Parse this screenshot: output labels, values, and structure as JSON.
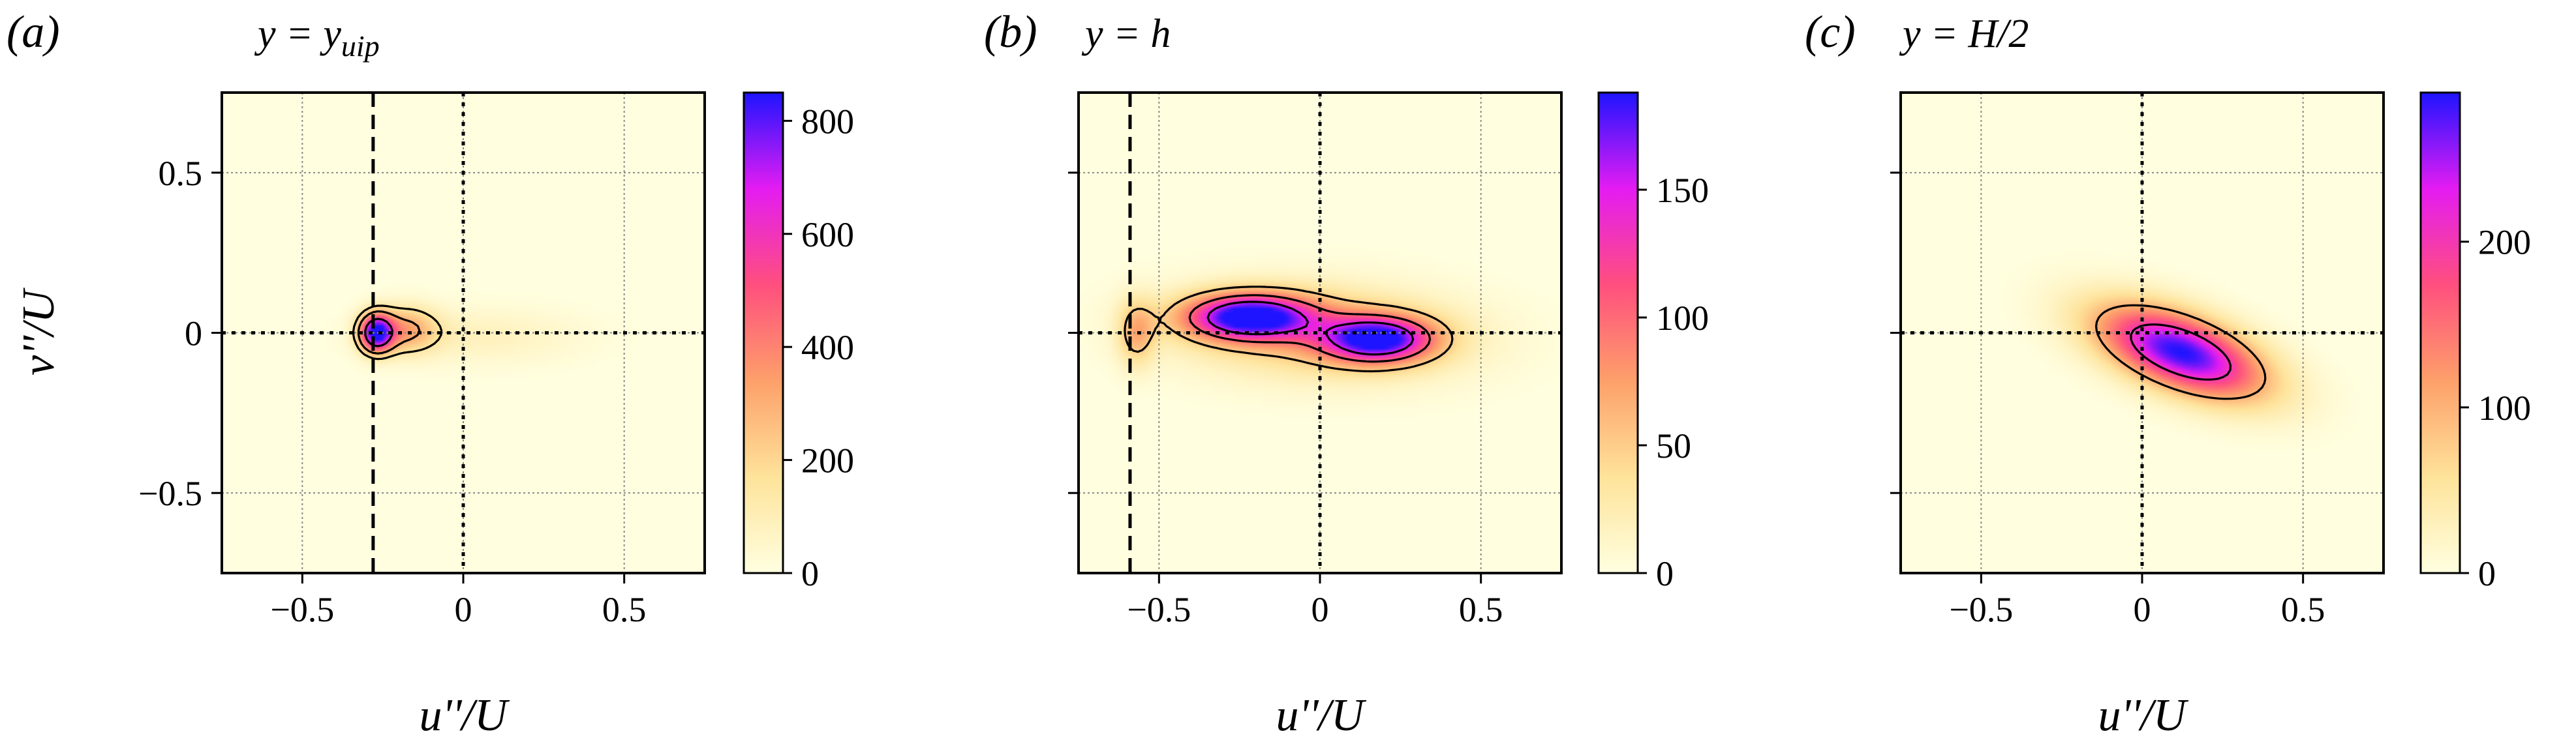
{
  "chart_data": [
    {
      "type": "heatmap",
      "panel": "(a)",
      "title_parts": {
        "base": "y = y",
        "sub": "uip"
      },
      "xlabel": "u''/U",
      "ylabel": "v''/U",
      "xlim": [
        -0.75,
        0.75
      ],
      "ylim": [
        -0.75,
        0.75
      ],
      "xticks": [
        -0.5,
        0,
        0.5
      ],
      "yticks": [
        -0.5,
        0,
        0.5
      ],
      "xtick_labels": [
        "−0.5",
        "0",
        "0.5"
      ],
      "ytick_labels": [
        "−0.5",
        "0",
        "0.5"
      ],
      "grid": true,
      "reference_dashed_x": -0.28,
      "reference_dotted_x": 0,
      "reference_dotted_y": 0,
      "colorbar": {
        "min": 0,
        "max": 850,
        "ticks": [
          0,
          200,
          400,
          600,
          800
        ],
        "tick_labels": [
          "0",
          "200",
          "400",
          "600",
          "800"
        ]
      },
      "density_lobes": [
        {
          "ux": -0.27,
          "vy": 0.0,
          "sx": 0.035,
          "sy": 0.04,
          "rho": 0.0,
          "weight": 850
        },
        {
          "ux": -0.18,
          "vy": 0.01,
          "sx": 0.07,
          "sy": 0.05,
          "rho": 0.0,
          "weight": 300
        },
        {
          "ux": 0.05,
          "vy": -0.01,
          "sx": 0.22,
          "sy": 0.06,
          "rho": 0.0,
          "weight": 80
        }
      ],
      "contour_levels": [
        150,
        300,
        600
      ]
    },
    {
      "type": "heatmap",
      "panel": "(b)",
      "title_parts": {
        "base": "y = h",
        "sub": ""
      },
      "xlabel": "u''/U",
      "ylabel": "",
      "xlim": [
        -0.75,
        0.75
      ],
      "ylim": [
        -0.75,
        0.75
      ],
      "xticks": [
        -0.5,
        0,
        0.5
      ],
      "yticks": [
        -0.5,
        0,
        0.5
      ],
      "xtick_labels": [
        "−0.5",
        "0",
        "0.5"
      ],
      "ytick_labels": [],
      "grid": true,
      "reference_dashed_x": -0.59,
      "reference_dotted_x": 0,
      "reference_dotted_y": 0,
      "colorbar": {
        "min": 0,
        "max": 188,
        "ticks": [
          0,
          50,
          100,
          150
        ],
        "tick_labels": [
          "0",
          "50",
          "100",
          "150"
        ]
      },
      "density_lobes": [
        {
          "ux": -0.22,
          "vy": 0.05,
          "sx": 0.14,
          "sy": 0.05,
          "rho": 0.0,
          "weight": 185
        },
        {
          "ux": 0.18,
          "vy": -0.02,
          "sx": 0.12,
          "sy": 0.05,
          "rho": 0.0,
          "weight": 170
        },
        {
          "ux": 0.0,
          "vy": 0.0,
          "sx": 0.3,
          "sy": 0.1,
          "rho": -0.1,
          "weight": 60
        },
        {
          "ux": -0.57,
          "vy": 0.0,
          "sx": 0.04,
          "sy": 0.07,
          "rho": 0.0,
          "weight": 60
        }
      ],
      "contour_levels": [
        50,
        100,
        150
      ]
    },
    {
      "type": "heatmap",
      "panel": "(c)",
      "title_parts": {
        "base": "y = H/2",
        "sub": ""
      },
      "xlabel": "u''/U",
      "ylabel": "",
      "xlim": [
        -0.75,
        0.75
      ],
      "ylim": [
        -0.75,
        0.75
      ],
      "xticks": [
        -0.5,
        0,
        0.5
      ],
      "yticks": [
        -0.5,
        0,
        0.5
      ],
      "xtick_labels": [
        "−0.5",
        "0",
        "0.5"
      ],
      "ytick_labels": [],
      "grid": true,
      "reference_dashed_x": null,
      "reference_dotted_x": 0,
      "reference_dotted_y": 0,
      "colorbar": {
        "min": 0,
        "max": 290,
        "ticks": [
          0,
          100,
          200
        ],
        "tick_labels": [
          "0",
          "100",
          "200"
        ]
      },
      "density_lobes": [
        {
          "ux": 0.12,
          "vy": -0.06,
          "sx": 0.18,
          "sy": 0.1,
          "rho": -0.55,
          "weight": 290
        }
      ],
      "contour_levels": [
        100,
        200
      ]
    }
  ]
}
